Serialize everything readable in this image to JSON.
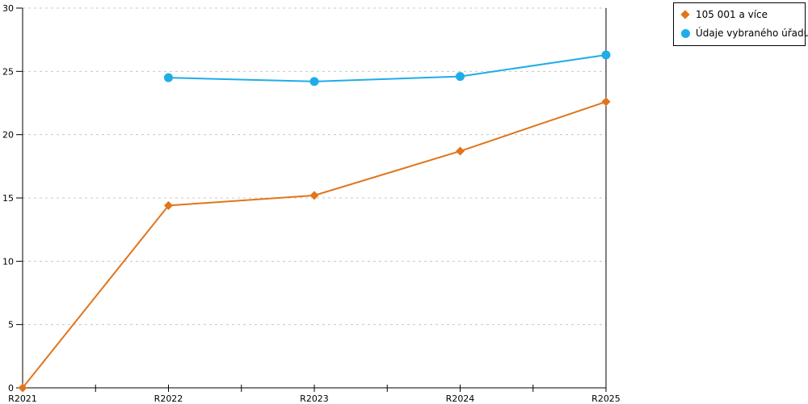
{
  "chart_data": {
    "type": "line",
    "title": "",
    "xlabel": "",
    "ylabel": "",
    "categories": [
      "R2021",
      "R2022",
      "R2023",
      "R2024",
      "R2025"
    ],
    "series": [
      {
        "name": "105 001 a více",
        "color": "#E0751C",
        "marker": "diamond",
        "values": [
          0,
          14.4,
          15.2,
          18.7,
          22.6
        ]
      },
      {
        "name": "Údaje vybraného úřadu",
        "color": "#1FADE8",
        "marker": "circle",
        "values": [
          null,
          24.5,
          24.2,
          24.6,
          26.3
        ]
      }
    ],
    "ylim": [
      0,
      30
    ],
    "yticks": [
      0,
      5,
      10,
      15,
      20,
      25,
      30
    ],
    "grid": "horizontal-dashed",
    "legend_position": "top-right"
  },
  "colors": {
    "background": "#ffffff",
    "axis": "#000000",
    "gridline": "#c8c8c8",
    "text": "#000000"
  }
}
